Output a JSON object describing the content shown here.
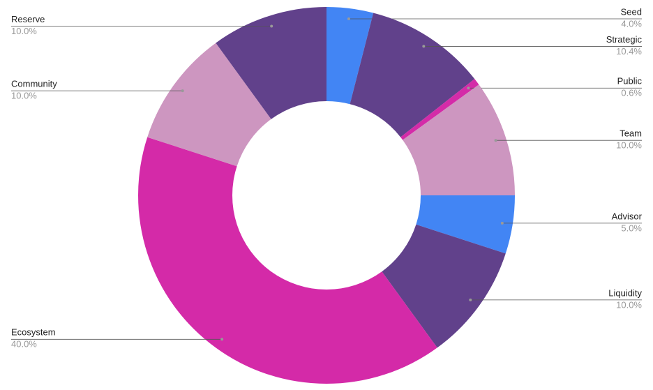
{
  "chart_data": {
    "type": "pie",
    "donut": true,
    "categories": [
      "Seed",
      "Strategic",
      "Public",
      "Team",
      "Advisor",
      "Liquidity",
      "Ecosystem",
      "Community",
      "Reserve"
    ],
    "values": [
      4,
      10.4,
      0.6,
      10,
      5,
      10,
      40,
      10,
      10
    ],
    "value_labels": [
      "4.0%",
      "10.4%",
      "0.6%",
      "10.0%",
      "5.0%",
      "10.0%",
      "40.0%",
      "10.0%",
      "10.0%"
    ],
    "colors": [
      "#4285f4",
      "#61418b",
      "#d42ba8",
      "#cd96c0",
      "#4285f4",
      "#61418b",
      "#d42aa8",
      "#cd96c0",
      "#61418b"
    ]
  }
}
